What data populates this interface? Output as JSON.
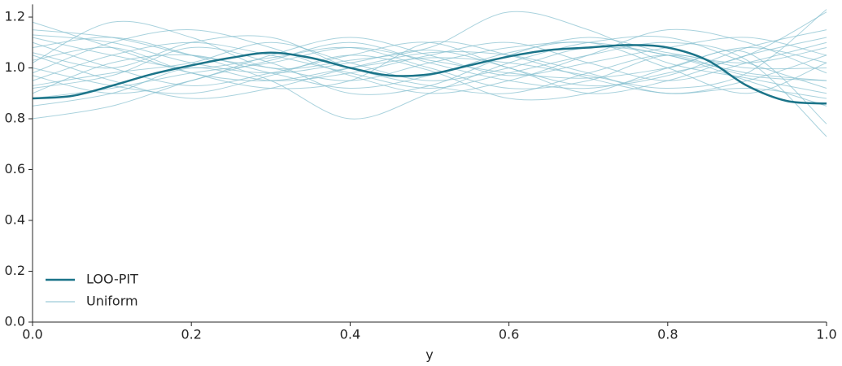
{
  "chart_data": {
    "type": "line",
    "x_label": "y",
    "xlim": [
      0,
      1
    ],
    "ylim": [
      0,
      1.25
    ],
    "xticks": [
      {
        "value": 0,
        "label": "0.0"
      },
      {
        "value": 0.2,
        "label": "0.2"
      },
      {
        "value": 0.4,
        "label": "0.4"
      },
      {
        "value": 0.6,
        "label": "0.6"
      },
      {
        "value": 0.8,
        "label": "0.8"
      },
      {
        "value": 1,
        "label": "1.0"
      }
    ],
    "yticks": [
      {
        "value": 0,
        "label": "0.0"
      },
      {
        "value": 0.2,
        "label": "0.2"
      },
      {
        "value": 0.4,
        "label": "0.4"
      },
      {
        "value": 0.6,
        "label": "0.6"
      },
      {
        "value": 0.8,
        "label": "0.8"
      },
      {
        "value": 1,
        "label": "1.0"
      },
      {
        "value": 1.2,
        "label": "1.2"
      }
    ],
    "grid": false,
    "legend": "lower left",
    "series": [
      {
        "name": "LOO-PIT",
        "color": "#1b7489",
        "x": [
          0,
          0.05,
          0.1,
          0.15,
          0.2,
          0.25,
          0.3,
          0.35,
          0.4,
          0.45,
          0.5,
          0.55,
          0.6,
          0.65,
          0.7,
          0.75,
          0.8,
          0.85,
          0.9,
          0.95,
          1
        ],
        "values": [
          0.88,
          0.89,
          0.93,
          0.975,
          1.01,
          1.04,
          1.06,
          1.04,
          1.0,
          0.97,
          0.975,
          1.01,
          1.045,
          1.07,
          1.08,
          1.09,
          1.08,
          1.03,
          0.93,
          0.87,
          0.86
        ]
      }
    ],
    "uniform": {
      "name": "Uniform",
      "color": "#84bfcf",
      "x": [
        0,
        0.1,
        0.2,
        0.3,
        0.4,
        0.5,
        0.6,
        0.7,
        0.8,
        0.9,
        1
      ],
      "samples": [
        [
          1.15,
          1.12,
          1.05,
          1.0,
          0.95,
          1.02,
          1.08,
          1.1,
          1.05,
          0.98,
          0.95
        ],
        [
          0.92,
          0.97,
          1.08,
          1.02,
          0.9,
          0.93,
          1.05,
          1.12,
          1.06,
          1.02,
          1.08
        ],
        [
          1.02,
          1.18,
          1.12,
          1.0,
          1.03,
          1.08,
          1.22,
          1.15,
          1.02,
          0.96,
          0.9
        ],
        [
          0.8,
          0.85,
          0.95,
          1.03,
          1.1,
          1.02,
          0.95,
          0.92,
          0.98,
          1.05,
          1.22
        ],
        [
          1.1,
          1.0,
          0.93,
          0.98,
          1.05,
          1.1,
          1.0,
          0.93,
          0.97,
          1.08,
          1.15
        ],
        [
          0.95,
          1.05,
          1.1,
          1.05,
          0.98,
          0.92,
          0.98,
          1.05,
          1.1,
          1.03,
          0.73
        ],
        [
          1.05,
          0.95,
          0.88,
          0.92,
          1.0,
          1.06,
          1.05,
          0.98,
          0.9,
          0.95,
          1.05
        ],
        [
          0.98,
          1.1,
          1.15,
          1.08,
          0.97,
          0.9,
          0.95,
          1.05,
          1.15,
          1.1,
          0.98
        ],
        [
          1.18,
          1.08,
          0.98,
          0.95,
          1.0,
          1.04,
          1.02,
          0.97,
          0.92,
          0.98,
          1.23
        ],
        [
          0.88,
          0.92,
          0.98,
          1.02,
          1.08,
          1.03,
          0.98,
          0.96,
          1.0,
          1.06,
          0.78
        ],
        [
          1.0,
          0.93,
          0.9,
          0.97,
          1.05,
          0.99,
          0.88,
          0.9,
          1.0,
          1.08,
          1.02
        ],
        [
          1.08,
          1.12,
          1.05,
          0.95,
          0.8,
          0.9,
          1.02,
          1.1,
          1.12,
          1.02,
          0.92
        ],
        [
          0.93,
          0.98,
          1.02,
          1.1,
          1.02,
          0.95,
          1.0,
          1.08,
          1.05,
          0.95,
          0.85
        ],
        [
          1.12,
          1.05,
          1.0,
          1.04,
          1.08,
          1.0,
          0.92,
          0.95,
          1.05,
          1.0,
          1.0
        ],
        [
          0.85,
          0.9,
          1.0,
          0.95,
          0.98,
          1.05,
          1.1,
          1.02,
          0.95,
          1.02,
          1.1
        ],
        [
          1.03,
          1.08,
          0.98,
          0.92,
          0.95,
          1.1,
          1.05,
          0.96,
          0.9,
          0.92,
          0.88
        ],
        [
          0.97,
          0.9,
          0.95,
          1.05,
          1.12,
          1.05,
          0.97,
          1.02,
          1.08,
          1.12,
          1.05
        ],
        [
          1.06,
          1.0,
          1.1,
          1.12,
          1.0,
          0.93,
          0.9,
          0.98,
          1.05,
          0.97,
          0.95
        ],
        [
          0.9,
          1.02,
          1.05,
          0.98,
          0.92,
          0.97,
          1.06,
          1.1,
          1.0,
          0.9,
          1.02
        ],
        [
          1.13,
          1.1,
          1.02,
          0.98,
          1.02,
          1.07,
          1.0,
          0.9,
          0.95,
          1.05,
          1.12
        ]
      ]
    }
  }
}
